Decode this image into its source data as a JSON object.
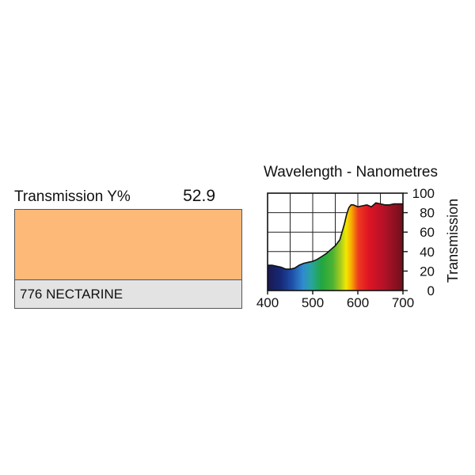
{
  "filter": {
    "transmission_label": "Transmission Y%",
    "transmission_value": "52.9",
    "swatch_color": "#fdb978",
    "name": "776 NECTARINE"
  },
  "chart_data": {
    "type": "area",
    "title": "Wavelength - Nanometres",
    "xlabel": "Wavelength - Nanometres",
    "ylabel": "Transmission",
    "xlim": [
      400,
      700
    ],
    "ylim": [
      0,
      100
    ],
    "x_ticks": [
      "400",
      "500",
      "600",
      "700"
    ],
    "y_ticks": [
      "0",
      "20",
      "40",
      "60",
      "80",
      "100"
    ],
    "grid": true,
    "x": [
      400,
      410,
      420,
      430,
      440,
      450,
      460,
      470,
      480,
      490,
      500,
      510,
      520,
      530,
      540,
      550,
      560,
      570,
      575,
      580,
      585,
      590,
      595,
      600,
      610,
      620,
      630,
      640,
      650,
      660,
      670,
      680,
      690,
      700
    ],
    "values": [
      26,
      26,
      25,
      24,
      22,
      22,
      23,
      26,
      28,
      29,
      30,
      32,
      35,
      38,
      42,
      46,
      52,
      68,
      78,
      85,
      88,
      88,
      87,
      86,
      87,
      88,
      86,
      90,
      89,
      88,
      88,
      89,
      89,
      89
    ]
  }
}
